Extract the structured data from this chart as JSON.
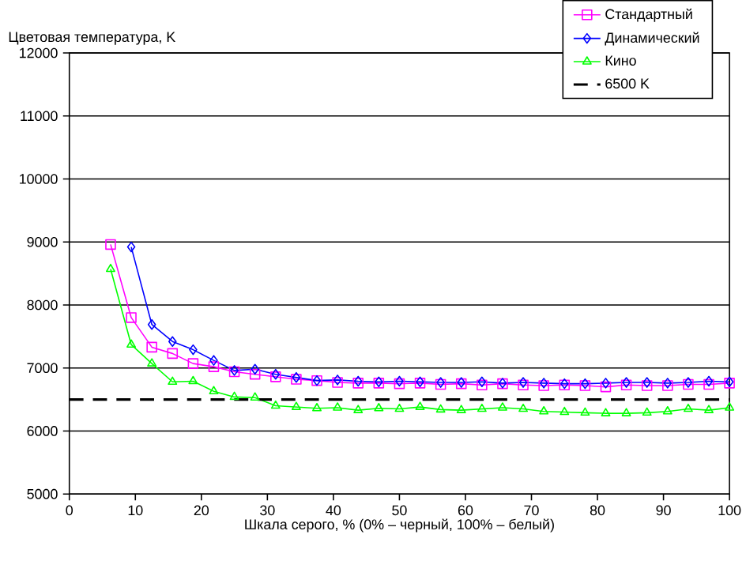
{
  "chart_data": {
    "type": "line",
    "ylabel": "Цветовая температура, K",
    "xlabel": "Шкала серого, % (0% – черный, 100% – белый)",
    "xlim": [
      0,
      100
    ],
    "xticks": [
      0,
      10,
      20,
      30,
      40,
      50,
      60,
      70,
      80,
      90,
      100
    ],
    "ylim": [
      5000,
      12000
    ],
    "yticks": [
      5000,
      6000,
      7000,
      8000,
      9000,
      10000,
      11000,
      12000
    ],
    "grid": "y",
    "legend": "top right",
    "series": [
      {
        "name": "Стандартный",
        "color": "#ff00ff",
        "marker": "square",
        "x": [
          6.25,
          9.375,
          12.5,
          15.625,
          18.75,
          21.875,
          25,
          28.125,
          31.25,
          34.375,
          37.5,
          40.625,
          43.75,
          46.875,
          50,
          53.125,
          56.25,
          59.375,
          62.5,
          65.625,
          68.75,
          71.875,
          75,
          78.125,
          81.25,
          84.375,
          87.5,
          90.625,
          93.75,
          96.875,
          100
        ],
        "values": [
          8960,
          7800,
          7330,
          7230,
          7070,
          7020,
          6940,
          6900,
          6860,
          6820,
          6800,
          6770,
          6760,
          6760,
          6750,
          6760,
          6740,
          6750,
          6730,
          6750,
          6730,
          6720,
          6730,
          6720,
          6700,
          6730,
          6720,
          6720,
          6740,
          6740,
          6760
        ]
      },
      {
        "name": "Динамический",
        "color": "#0000ff",
        "marker": "diamond",
        "x": [
          9.375,
          12.5,
          15.625,
          18.75,
          21.875,
          25,
          28.125,
          31.25,
          34.375,
          37.5,
          40.625,
          43.75,
          46.875,
          50,
          53.125,
          56.25,
          59.375,
          62.5,
          65.625,
          68.75,
          71.875,
          75,
          78.125,
          81.25,
          84.375,
          87.5,
          90.625,
          93.75,
          96.875,
          100
        ],
        "values": [
          8920,
          7690,
          7420,
          7290,
          7120,
          6960,
          6980,
          6900,
          6850,
          6800,
          6810,
          6790,
          6780,
          6790,
          6780,
          6770,
          6770,
          6780,
          6760,
          6770,
          6760,
          6750,
          6750,
          6760,
          6770,
          6770,
          6760,
          6770,
          6790,
          6780
        ]
      },
      {
        "name": "Кино",
        "color": "#00ff00",
        "marker": "triangle",
        "x": [
          6.25,
          9.375,
          12.5,
          15.625,
          18.75,
          21.875,
          25,
          28.125,
          31.25,
          34.375,
          37.5,
          40.625,
          43.75,
          46.875,
          50,
          53.125,
          56.25,
          59.375,
          62.5,
          65.625,
          68.75,
          71.875,
          75,
          78.125,
          81.25,
          84.375,
          87.5,
          90.625,
          93.75,
          96.875,
          100
        ],
        "values": [
          8570,
          7370,
          7070,
          6780,
          6790,
          6630,
          6540,
          6530,
          6400,
          6380,
          6360,
          6370,
          6330,
          6360,
          6350,
          6380,
          6340,
          6330,
          6350,
          6370,
          6350,
          6310,
          6300,
          6290,
          6280,
          6280,
          6290,
          6310,
          6350,
          6330,
          6370
        ]
      }
    ],
    "ref_lines": [
      {
        "axis": "y",
        "value": 6500,
        "label": "6500 K",
        "color": "#000000",
        "line_style": "dashed"
      }
    ]
  }
}
